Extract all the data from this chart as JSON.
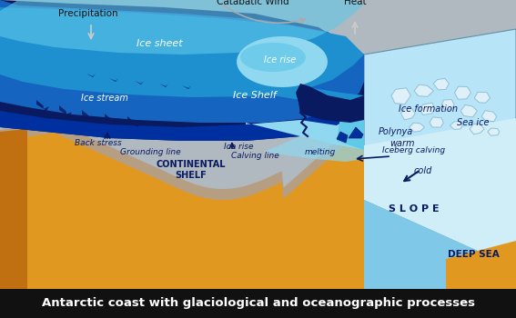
{
  "bg_color": "#b0b8c0",
  "caption": "Antarctic coast with glaciological and oceanographic processes",
  "caption_bg": "#111111",
  "caption_color": "#ffffff",
  "colors": {
    "dark_navy": "#0a1a60",
    "deep_blue": "#0030a0",
    "mid_blue": "#1565c0",
    "bright_blue": "#1e90d0",
    "light_cyan": "#60c8e8",
    "sky_blue": "#90d8f0",
    "pale_blue": "#b8e4f8",
    "very_pale": "#d0eef8",
    "sea_ice_white": "#e8f4fc",
    "ground_orange": "#e09820",
    "ground_dark": "#c07010",
    "ground_shadow": "#a86010",
    "ocean_floor": "#b0d8f0",
    "slope_blue": "#80c8e8",
    "teal": "#20a0c0"
  },
  "labels": {
    "precipitation": "Precipitation",
    "catabatic": "Catabatic Wind",
    "heat": "Heat",
    "ice_sheet": "Ice sheet",
    "ice_stream": "Ice stream",
    "ice_rise1": "Ice rise",
    "ice_rise2": "Ice rise",
    "ice_shelf": "Ice Shelf",
    "back_stress": "Back stress",
    "grounding": "Grounding line",
    "continental": "CONTINENTAL\nSHELF",
    "calving_line": "Calving line",
    "melting": "melting",
    "warm": "warm",
    "cold": "cold",
    "ice_formation": "Ice formation",
    "polynya": "Polynya",
    "sea_ice": "Sea ice",
    "iceberg": "Iceberg calving",
    "slope": "S L O P E",
    "deep_sea": "DEEP SEA"
  }
}
